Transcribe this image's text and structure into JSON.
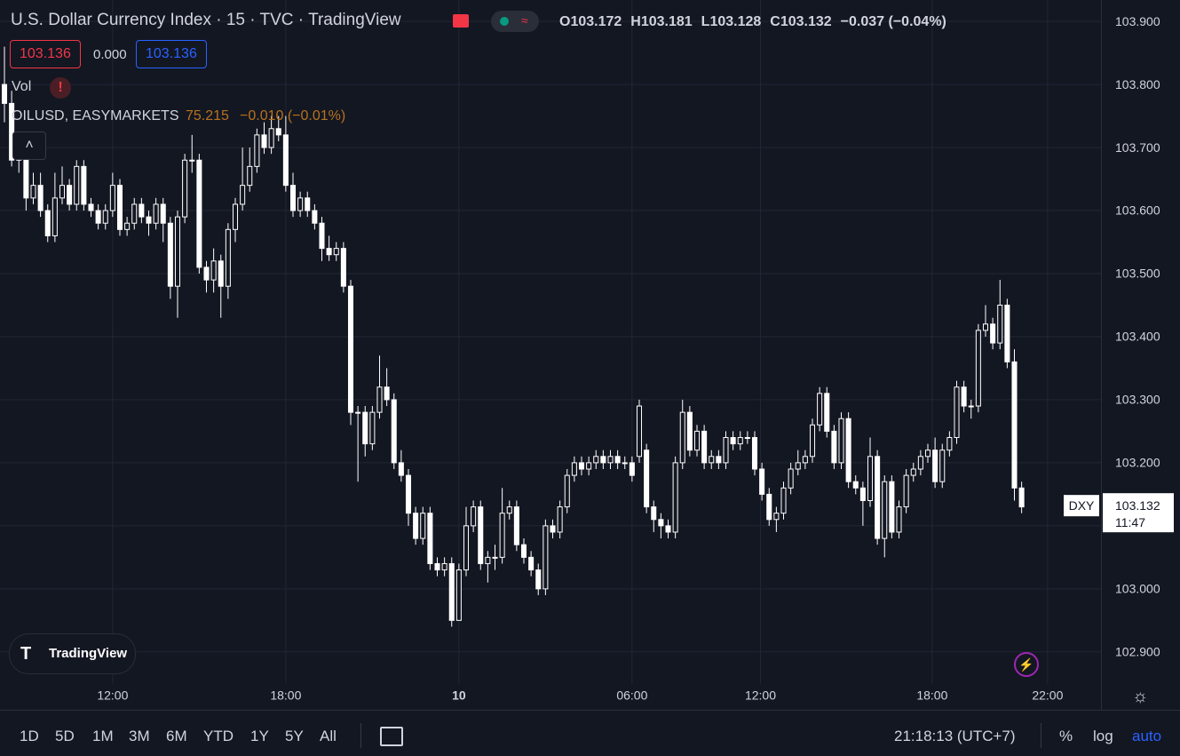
{
  "header": {
    "title": "U.S. Dollar Currency Index · 15 · TVC · TradingView",
    "ohlc": [
      "O103.172",
      "H103.181",
      "L103.128",
      "C103.132",
      "−0.037 (−0.04%)"
    ],
    "sell": "103.136",
    "spread": "0.000",
    "buy": "103.136"
  },
  "indicators": {
    "vol": "Vol",
    "overlay": {
      "name": "OILUSD, EASYMARKETS",
      "value": "75.215",
      "change": "−0.010 (−0.01%)"
    }
  },
  "logo": "TradingView",
  "toolbar": {
    "ranges": [
      "1D",
      "5D",
      "1M",
      "3M",
      "6M",
      "YTD",
      "1Y",
      "5Y",
      "All"
    ],
    "clock": "21:18:13 (UTC+7)",
    "percent": "%",
    "log": "log",
    "auto": "auto"
  },
  "chart_data": {
    "type": "candlestick",
    "symbol": "DXY",
    "last_price": 103.132,
    "countdown": "11:47",
    "grid": true,
    "up_color": "#ffffff",
    "down_color": "#ffffff",
    "xlim": [
      -0.615,
      152
    ],
    "ylim": [
      102.849,
      103.934
    ],
    "xticks": [
      {
        "value": 15,
        "label": "12:00"
      },
      {
        "value": 39,
        "label": "18:00"
      },
      {
        "value": 63,
        "label": "10"
      },
      {
        "value": 87,
        "label": "06:00"
      },
      {
        "value": 104.8,
        "label": "12:00"
      },
      {
        "value": 128.6,
        "label": "18:00"
      },
      {
        "value": 144.6,
        "label": "22:00"
      }
    ],
    "yticks": [
      {
        "value": 102.9,
        "label": "102.900"
      },
      {
        "value": 103,
        "label": "103.000"
      },
      {
        "value": 103.1,
        "label": "103.100"
      },
      {
        "value": 103.2,
        "label": "103.200"
      },
      {
        "value": 103.3,
        "label": "103.300"
      },
      {
        "value": 103.4,
        "label": "103.400"
      },
      {
        "value": 103.5,
        "label": "103.500"
      },
      {
        "value": 103.6,
        "label": "103.600"
      },
      {
        "value": 103.7,
        "label": "103.700"
      },
      {
        "value": 103.8,
        "label": "103.800"
      },
      {
        "value": 103.9,
        "label": "103.900"
      }
    ],
    "ohlc": [
      [
        103.8,
        103.86,
        103.74,
        103.77
      ],
      [
        103.77,
        103.79,
        103.67,
        103.68
      ],
      [
        103.68,
        103.71,
        103.66,
        103.7
      ],
      [
        103.7,
        103.72,
        103.6,
        103.62
      ],
      [
        103.62,
        103.66,
        103.61,
        103.64
      ],
      [
        103.64,
        103.66,
        103.59,
        103.6
      ],
      [
        103.6,
        103.61,
        103.55,
        103.56
      ],
      [
        103.56,
        103.66,
        103.55,
        103.62
      ],
      [
        103.62,
        103.67,
        103.61,
        103.64
      ],
      [
        103.64,
        103.65,
        103.6,
        103.61
      ],
      [
        103.61,
        103.68,
        103.6,
        103.67
      ],
      [
        103.67,
        103.68,
        103.6,
        103.61
      ],
      [
        103.61,
        103.62,
        103.59,
        103.6
      ],
      [
        103.6,
        103.61,
        103.57,
        103.58
      ],
      [
        103.58,
        103.61,
        103.57,
        103.6
      ],
      [
        103.6,
        103.66,
        103.59,
        103.64
      ],
      [
        103.64,
        103.65,
        103.56,
        103.57
      ],
      [
        103.57,
        103.59,
        103.56,
        103.58
      ],
      [
        103.58,
        103.62,
        103.57,
        103.61
      ],
      [
        103.61,
        103.62,
        103.58,
        103.59
      ],
      [
        103.59,
        103.6,
        103.56,
        103.58
      ],
      [
        103.58,
        103.62,
        103.57,
        103.61
      ],
      [
        103.61,
        103.62,
        103.55,
        103.58
      ],
      [
        103.58,
        103.59,
        103.46,
        103.48
      ],
      [
        103.48,
        103.6,
        103.43,
        103.59
      ],
      [
        103.59,
        103.69,
        103.58,
        103.68
      ],
      [
        103.68,
        103.72,
        103.66,
        103.68
      ],
      [
        103.68,
        103.69,
        103.5,
        103.51
      ],
      [
        103.51,
        103.52,
        103.47,
        103.49
      ],
      [
        103.49,
        103.54,
        103.47,
        103.52
      ],
      [
        103.52,
        103.53,
        103.43,
        103.48
      ],
      [
        103.48,
        103.58,
        103.46,
        103.57
      ],
      [
        103.57,
        103.62,
        103.55,
        103.61
      ],
      [
        103.61,
        103.7,
        103.6,
        103.64
      ],
      [
        103.64,
        103.7,
        103.63,
        103.67
      ],
      [
        103.67,
        103.73,
        103.66,
        103.72
      ],
      [
        103.72,
        103.74,
        103.69,
        103.7
      ],
      [
        103.7,
        103.75,
        103.69,
        103.73
      ],
      [
        103.73,
        103.75,
        103.71,
        103.72
      ],
      [
        103.72,
        103.75,
        103.63,
        103.64
      ],
      [
        103.64,
        103.66,
        103.59,
        103.6
      ],
      [
        103.6,
        103.63,
        103.59,
        103.62
      ],
      [
        103.62,
        103.63,
        103.59,
        103.6
      ],
      [
        103.6,
        103.61,
        103.57,
        103.58
      ],
      [
        103.58,
        103.59,
        103.52,
        103.54
      ],
      [
        103.54,
        103.56,
        103.52,
        103.53
      ],
      [
        103.53,
        103.55,
        103.52,
        103.54
      ],
      [
        103.54,
        103.55,
        103.47,
        103.48
      ],
      [
        103.48,
        103.49,
        103.26,
        103.28
      ],
      [
        103.28,
        103.29,
        103.17,
        103.28
      ],
      [
        103.28,
        103.29,
        103.21,
        103.23
      ],
      [
        103.23,
        103.29,
        103.22,
        103.28
      ],
      [
        103.28,
        103.37,
        103.27,
        103.32
      ],
      [
        103.32,
        103.35,
        103.29,
        103.3
      ],
      [
        103.3,
        103.31,
        103.19,
        103.2
      ],
      [
        103.2,
        103.22,
        103.17,
        103.18
      ],
      [
        103.18,
        103.19,
        103.1,
        103.12
      ],
      [
        103.12,
        103.13,
        103.07,
        103.08
      ],
      [
        103.08,
        103.13,
        103.07,
        103.12
      ],
      [
        103.12,
        103.13,
        103.03,
        103.04
      ],
      [
        103.04,
        103.05,
        103.02,
        103.03
      ],
      [
        103.03,
        103.05,
        103.02,
        103.04
      ],
      [
        103.04,
        103.05,
        102.94,
        102.95
      ],
      [
        102.95,
        103.04,
        102.95,
        103.03
      ],
      [
        103.03,
        103.13,
        103.02,
        103.1
      ],
      [
        103.1,
        103.14,
        103.09,
        103.13
      ],
      [
        103.13,
        103.14,
        103.03,
        103.04
      ],
      [
        103.04,
        103.06,
        103.01,
        103.05
      ],
      [
        103.05,
        103.07,
        103.03,
        103.05
      ],
      [
        103.05,
        103.16,
        103.04,
        103.12
      ],
      [
        103.12,
        103.14,
        103.11,
        103.13
      ],
      [
        103.13,
        103.14,
        103.06,
        103.07
      ],
      [
        103.07,
        103.08,
        103.04,
        103.05
      ],
      [
        103.05,
        103.06,
        103.02,
        103.03
      ],
      [
        103.03,
        103.04,
        102.99,
        103.0
      ],
      [
        103.0,
        103.11,
        102.99,
        103.1
      ],
      [
        103.1,
        103.11,
        103.08,
        103.09
      ],
      [
        103.09,
        103.14,
        103.08,
        103.13
      ],
      [
        103.13,
        103.19,
        103.12,
        103.18
      ],
      [
        103.18,
        103.21,
        103.17,
        103.2
      ],
      [
        103.2,
        103.21,
        103.18,
        103.19
      ],
      [
        103.19,
        103.21,
        103.18,
        103.2
      ],
      [
        103.2,
        103.22,
        103.19,
        103.21
      ],
      [
        103.21,
        103.22,
        103.19,
        103.2
      ],
      [
        103.2,
        103.22,
        103.19,
        103.21
      ],
      [
        103.21,
        103.22,
        103.19,
        103.2
      ],
      [
        103.2,
        103.21,
        103.19,
        103.2
      ],
      [
        103.2,
        103.21,
        103.17,
        103.18
      ],
      [
        103.21,
        103.3,
        103.2,
        103.29
      ],
      [
        103.22,
        103.23,
        103.12,
        103.13
      ],
      [
        103.13,
        103.14,
        103.09,
        103.11
      ],
      [
        103.11,
        103.12,
        103.08,
        103.1
      ],
      [
        103.1,
        103.11,
        103.08,
        103.09
      ],
      [
        103.09,
        103.21,
        103.08,
        103.2
      ],
      [
        103.2,
        103.3,
        103.19,
        103.28
      ],
      [
        103.28,
        103.29,
        103.21,
        103.22
      ],
      [
        103.22,
        103.26,
        103.21,
        103.25
      ],
      [
        103.25,
        103.26,
        103.19,
        103.2
      ],
      [
        103.2,
        103.22,
        103.19,
        103.21
      ],
      [
        103.21,
        103.22,
        103.19,
        103.2
      ],
      [
        103.2,
        103.25,
        103.19,
        103.24
      ],
      [
        103.24,
        103.25,
        103.22,
        103.23
      ],
      [
        103.23,
        103.25,
        103.22,
        103.24
      ],
      [
        103.24,
        103.25,
        103.23,
        103.24
      ],
      [
        103.24,
        103.25,
        103.18,
        103.19
      ],
      [
        103.19,
        103.2,
        103.14,
        103.15
      ],
      [
        103.15,
        103.16,
        103.1,
        103.11
      ],
      [
        103.11,
        103.13,
        103.09,
        103.12
      ],
      [
        103.12,
        103.17,
        103.11,
        103.16
      ],
      [
        103.16,
        103.2,
        103.15,
        103.19
      ],
      [
        103.19,
        103.22,
        103.18,
        103.2
      ],
      [
        103.2,
        103.22,
        103.19,
        103.21
      ],
      [
        103.21,
        103.27,
        103.2,
        103.26
      ],
      [
        103.26,
        103.32,
        103.25,
        103.31
      ],
      [
        103.31,
        103.32,
        103.24,
        103.25
      ],
      [
        103.25,
        103.26,
        103.19,
        103.2
      ],
      [
        103.2,
        103.28,
        103.19,
        103.27
      ],
      [
        103.27,
        103.28,
        103.16,
        103.17
      ],
      [
        103.17,
        103.18,
        103.15,
        103.16
      ],
      [
        103.16,
        103.17,
        103.1,
        103.14
      ],
      [
        103.14,
        103.24,
        103.13,
        103.21
      ],
      [
        103.21,
        103.22,
        103.07,
        103.08
      ],
      [
        103.08,
        103.18,
        103.05,
        103.17
      ],
      [
        103.17,
        103.18,
        103.08,
        103.09
      ],
      [
        103.09,
        103.14,
        103.08,
        103.13
      ],
      [
        103.13,
        103.19,
        103.12,
        103.18
      ],
      [
        103.18,
        103.2,
        103.17,
        103.19
      ],
      [
        103.19,
        103.22,
        103.18,
        103.21
      ],
      [
        103.21,
        103.23,
        103.2,
        103.22
      ],
      [
        103.22,
        103.24,
        103.16,
        103.17
      ],
      [
        103.17,
        103.23,
        103.16,
        103.22
      ],
      [
        103.22,
        103.25,
        103.21,
        103.24
      ],
      [
        103.24,
        103.33,
        103.23,
        103.32
      ],
      [
        103.32,
        103.33,
        103.28,
        103.29
      ],
      [
        103.29,
        103.3,
        103.27,
        103.29
      ],
      [
        103.29,
        103.42,
        103.28,
        103.41
      ],
      [
        103.41,
        103.45,
        103.4,
        103.42
      ],
      [
        103.42,
        103.43,
        103.38,
        103.39
      ],
      [
        103.39,
        103.49,
        103.38,
        103.45
      ],
      [
        103.45,
        103.46,
        103.35,
        103.36
      ],
      [
        103.36,
        103.38,
        103.14,
        103.16
      ],
      [
        103.16,
        103.17,
        103.12,
        103.13
      ]
    ]
  }
}
